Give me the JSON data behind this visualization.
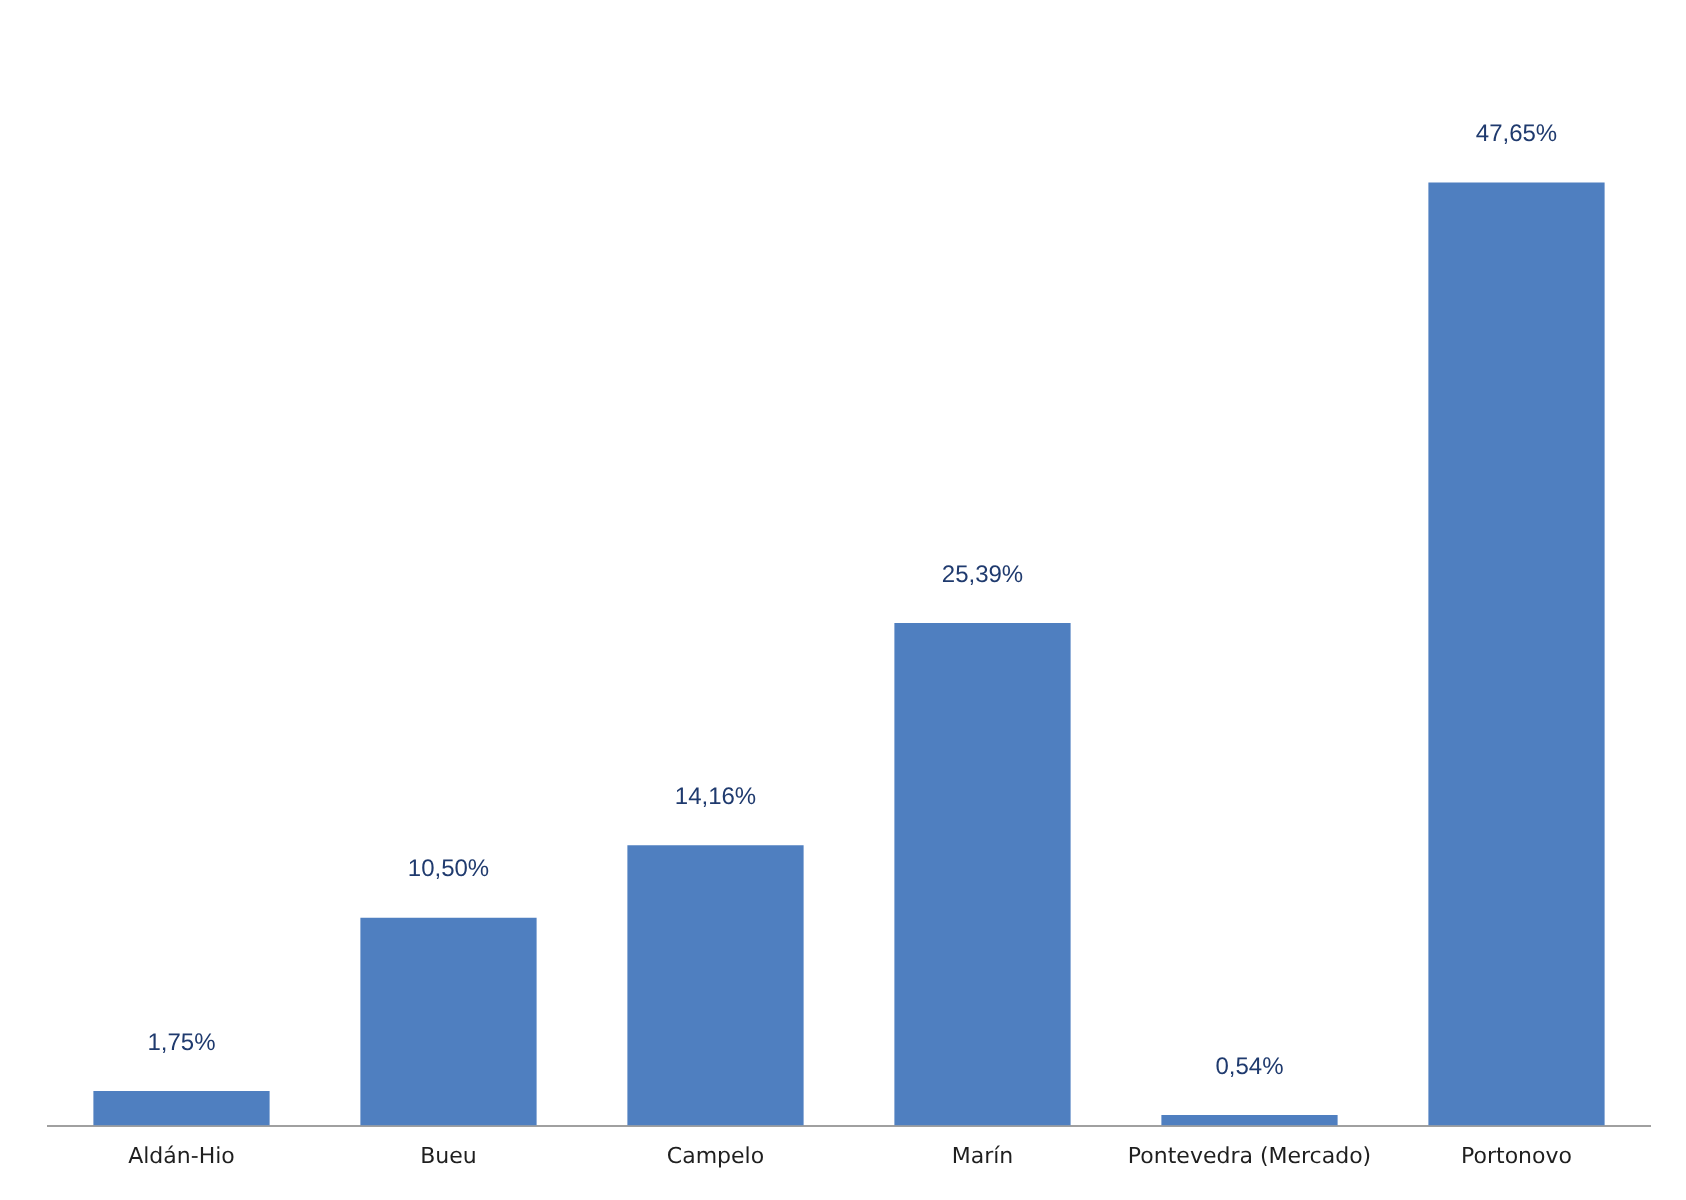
{
  "chart_data": {
    "type": "bar",
    "categories": [
      "Aldán-Hio",
      "Bueu",
      "Campelo",
      "Marín",
      "Pontevedra (Mercado)",
      "Portonovo"
    ],
    "values": [
      1.75,
      10.5,
      14.16,
      25.39,
      0.54,
      47.65
    ],
    "value_labels": [
      "1,75%",
      "10,50%",
      "14,16%",
      "25,39%",
      "0,54%",
      "47,65%"
    ],
    "color": "#4f7fc0",
    "grid": false,
    "legend": false,
    "tick_labels": "x"
  }
}
